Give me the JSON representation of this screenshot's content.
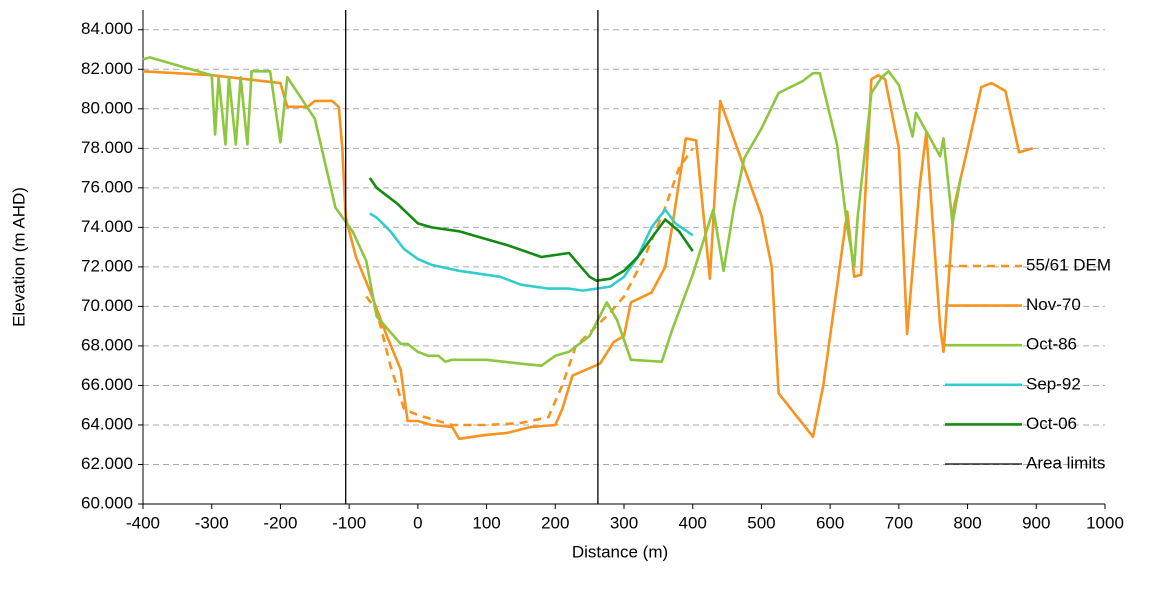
{
  "chart_data": {
    "type": "line",
    "xlabel": "Distance (m)",
    "ylabel": "Elevation (m AHD)",
    "xlim": [
      -400,
      1000
    ],
    "xticks": [
      -400,
      -300,
      -200,
      -100,
      0,
      100,
      200,
      300,
      400,
      500,
      600,
      700,
      800,
      900,
      1000
    ],
    "ylim": [
      60,
      85
    ],
    "yticks": [
      {
        "value": 60,
        "label": "60.000"
      },
      {
        "value": 62,
        "label": "62.000"
      },
      {
        "value": 64,
        "label": "64.000"
      },
      {
        "value": 66,
        "label": "66.000"
      },
      {
        "value": 68,
        "label": "68.000"
      },
      {
        "value": 70,
        "label": "70.000"
      },
      {
        "value": 72,
        "label": "72.000"
      },
      {
        "value": 74,
        "label": "74.000"
      },
      {
        "value": 76,
        "label": "76.000"
      },
      {
        "value": 78,
        "label": "78.000"
      },
      {
        "value": 80,
        "label": "80.000"
      },
      {
        "value": 82,
        "label": "82.000"
      },
      {
        "value": 84,
        "label": "84.000"
      }
    ],
    "grid": true,
    "legend": "right",
    "series": [
      {
        "name": "55/61 DEM",
        "color": "#f7931e",
        "dashed": true,
        "x": [
          -75,
          -60,
          -40,
          -20,
          0,
          50,
          100,
          150,
          190,
          210,
          230,
          260,
          280,
          300,
          330,
          360,
          380,
          400
        ],
        "values": [
          70.5,
          69.8,
          67,
          64.8,
          64.5,
          64,
          64,
          64.1,
          64.4,
          66,
          68,
          69,
          69.7,
          70.5,
          72.5,
          75,
          77,
          78
        ]
      },
      {
        "name": "Nov-70",
        "color": "#f7931e",
        "x": [
          -400,
          -300,
          -200,
          -190,
          -160,
          -150,
          -125,
          -115,
          -110,
          -105,
          -90,
          -70,
          -45,
          -25,
          -15,
          0,
          20,
          50,
          60,
          80,
          100,
          130,
          165,
          200,
          210,
          225,
          265,
          285,
          300,
          310,
          340,
          360,
          370,
          390,
          405,
          425,
          440,
          500,
          515,
          525,
          575,
          590,
          610,
          625,
          635,
          645,
          660,
          670,
          680,
          700,
          712,
          730,
          740,
          760,
          765,
          780,
          800,
          820,
          835,
          855,
          875,
          895
        ],
        "values": [
          81.9,
          81.7,
          81.3,
          80.1,
          80.1,
          80.4,
          80.4,
          80.1,
          78,
          74.5,
          72.5,
          70.8,
          68.5,
          66.8,
          64.2,
          64.2,
          64,
          63.9,
          63.3,
          63.4,
          63.5,
          63.6,
          63.9,
          64,
          64.8,
          66.5,
          67.1,
          68.2,
          68.5,
          70.2,
          70.7,
          72,
          74,
          78.5,
          78.4,
          71.4,
          80.4,
          74.6,
          72,
          65.6,
          63.4,
          66,
          71,
          74.8,
          71.5,
          71.6,
          81.5,
          81.7,
          81.5,
          78,
          68.6,
          76,
          78.8,
          69,
          67.7,
          75,
          78,
          81.1,
          81.3,
          80.9,
          77.8,
          78
        ]
      },
      {
        "name": "Oct-86",
        "color": "#8dc63f",
        "x": [
          -400,
          -390,
          -300,
          -295,
          -290,
          -280,
          -275,
          -265,
          -258,
          -248,
          -242,
          -215,
          -200,
          -190,
          -150,
          -120,
          -95,
          -75,
          -60,
          -35,
          -25,
          -15,
          0,
          15,
          30,
          40,
          50,
          100,
          150,
          180,
          200,
          220,
          250,
          275,
          290,
          310,
          355,
          370,
          400,
          430,
          445,
          460,
          475,
          500,
          525,
          560,
          575,
          585,
          610,
          625,
          635,
          640,
          660,
          675,
          685,
          700,
          720,
          725,
          760,
          765,
          778,
          790
        ],
        "values": [
          82.5,
          82.6,
          81.7,
          78.7,
          81.6,
          78.2,
          81.6,
          78.2,
          81.6,
          78.2,
          81.9,
          81.9,
          78.3,
          81.6,
          79.5,
          75,
          73.8,
          72.3,
          69.5,
          68.5,
          68.1,
          68.1,
          67.7,
          67.5,
          67.5,
          67.2,
          67.3,
          67.3,
          67.1,
          67,
          67.5,
          67.7,
          68.5,
          70.2,
          69.3,
          67.3,
          67.2,
          68.8,
          71.6,
          74.9,
          71.8,
          75,
          77.5,
          79,
          80.8,
          81.4,
          81.8,
          81.8,
          78.2,
          74,
          72,
          74.5,
          80.8,
          81.6,
          81.9,
          81.2,
          78.6,
          79.8,
          77.6,
          78.5,
          74.2,
          76.5
        ]
      },
      {
        "name": "Sep-92",
        "color": "#33cccc",
        "x": [
          -70,
          -60,
          -40,
          -20,
          0,
          20,
          60,
          100,
          120,
          150,
          190,
          220,
          240,
          260,
          280,
          300,
          320,
          340,
          360,
          375,
          400
        ],
        "values": [
          74.7,
          74.5,
          73.8,
          72.9,
          72.4,
          72.1,
          71.8,
          71.6,
          71.5,
          71.1,
          70.9,
          70.9,
          70.8,
          70.9,
          71,
          71.5,
          72.5,
          74,
          74.9,
          74.2,
          73.6
        ]
      },
      {
        "name": "Oct-06",
        "color": "#138a13",
        "x": [
          -70,
          -60,
          -30,
          0,
          20,
          60,
          90,
          130,
          180,
          220,
          250,
          260,
          280,
          300,
          320,
          360,
          380,
          400
        ],
        "values": [
          76.5,
          76,
          75.2,
          74.2,
          74,
          73.8,
          73.5,
          73.1,
          72.5,
          72.7,
          71.5,
          71.3,
          71.4,
          71.8,
          72.5,
          74.4,
          73.8,
          72.8
        ]
      },
      {
        "name": "Area limits",
        "color": "#000000",
        "thin": true,
        "x": [
          -105,
          -105,
          262,
          262,
          262
        ],
        "values": [
          85,
          60,
          null,
          60,
          85
        ]
      }
    ]
  }
}
